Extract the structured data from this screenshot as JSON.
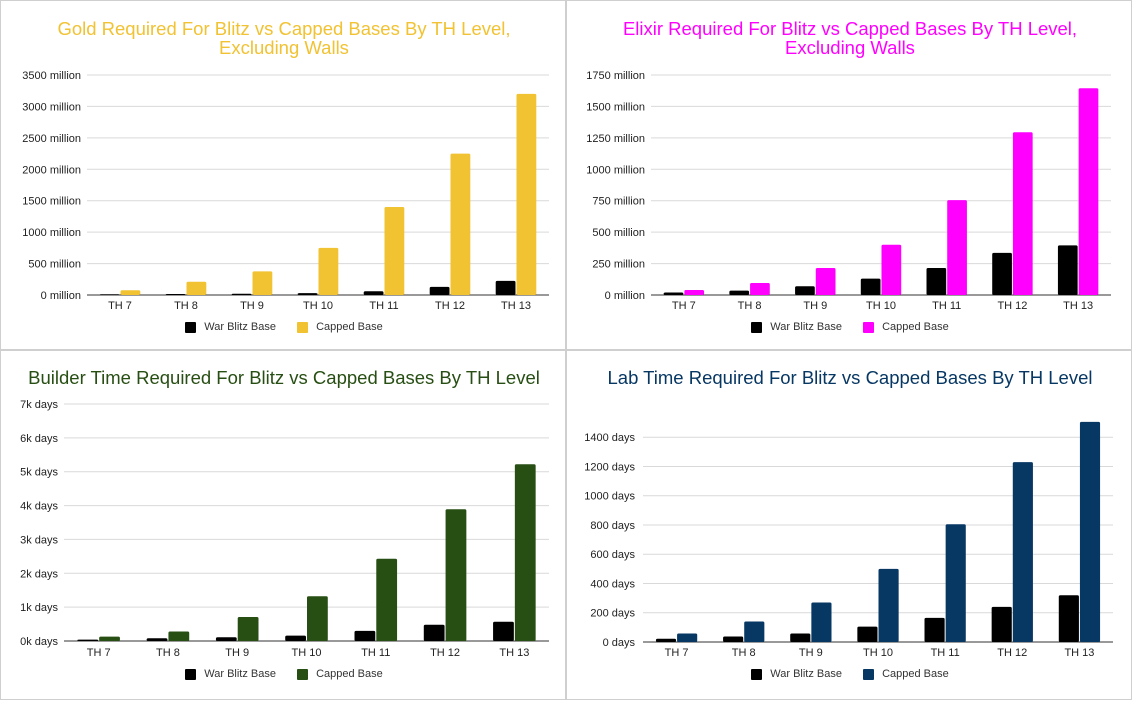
{
  "chart_data": [
    {
      "type": "bar",
      "title": "Gold Required For Blitz vs Capped Bases By TH Level, Excluding Walls",
      "title_lines": [
        "Gold Required For Blitz vs Capped Bases By TH Level,",
        "Excluding Walls"
      ],
      "title_color": "#f1c232",
      "categories": [
        "TH 7",
        "TH 8",
        "TH 9",
        "TH 10",
        "TH 11",
        "TH 12",
        "TH 13"
      ],
      "series": [
        {
          "name": "War Blitz Base",
          "color": "#000000",
          "values": [
            5,
            15,
            20,
            30,
            60,
            130,
            225
          ]
        },
        {
          "name": "Capped Base",
          "color": "#f1c232",
          "values": [
            75,
            210,
            375,
            750,
            1400,
            2250,
            3200
          ]
        }
      ],
      "yticks": [
        0,
        500,
        1000,
        1500,
        2000,
        2500,
        3000,
        3500
      ],
      "ytick_labels": [
        "0 million",
        "500 million",
        "1000 million",
        "1500 million",
        "2000 million",
        "2500 million",
        "3000 million",
        "3500 million"
      ],
      "ylim": [
        0,
        3500
      ],
      "xlabel": "",
      "ylabel": "",
      "legend": "bottom"
    },
    {
      "type": "bar",
      "title": "Elixir Required For Blitz vs Capped Bases By TH Level, Excluding Walls",
      "title_lines": [
        "Elixir Required For Blitz vs Capped Bases By TH Level,",
        "Excluding Walls"
      ],
      "title_color": "#ff00ff",
      "categories": [
        "TH 7",
        "TH 8",
        "TH 9",
        "TH 10",
        "TH 11",
        "TH 12",
        "TH 13"
      ],
      "series": [
        {
          "name": "War Blitz Base",
          "color": "#000000",
          "values": [
            20,
            35,
            70,
            130,
            215,
            335,
            395
          ]
        },
        {
          "name": "Capped Base",
          "color": "#ff00ff",
          "values": [
            40,
            95,
            215,
            400,
            755,
            1295,
            1645
          ]
        }
      ],
      "yticks": [
        0,
        250,
        500,
        750,
        1000,
        1250,
        1500,
        1750
      ],
      "ytick_labels": [
        "0 million",
        "250 million",
        "500 million",
        "750 million",
        "1000 million",
        "1250 million",
        "1500 million",
        "1750 million"
      ],
      "ylim": [
        0,
        1750
      ],
      "xlabel": "",
      "ylabel": "",
      "legend": "bottom"
    },
    {
      "type": "bar",
      "title": "Builder Time Required For Blitz vs Capped Bases By TH Level",
      "title_lines": [
        "Builder Time Required For Blitz vs Capped Bases By TH Level"
      ],
      "title_color": "#274e13",
      "categories": [
        "TH 7",
        "TH 8",
        "TH 9",
        "TH 10",
        "TH 11",
        "TH 12",
        "TH 13"
      ],
      "series": [
        {
          "name": "War Blitz Base",
          "color": "#000000",
          "values": [
            40,
            80,
            110,
            160,
            300,
            480,
            570
          ]
        },
        {
          "name": "Capped Base",
          "color": "#274e13",
          "values": [
            130,
            280,
            710,
            1320,
            2430,
            3890,
            5220
          ]
        }
      ],
      "yticks": [
        0,
        1000,
        2000,
        3000,
        4000,
        5000,
        6000,
        7000
      ],
      "ytick_labels": [
        "0k days",
        "1k days",
        "2k days",
        "3k days",
        "4k days",
        "5k days",
        "6k days",
        "7k days"
      ],
      "ylim": [
        0,
        7000
      ],
      "xlabel": "",
      "ylabel": "",
      "legend": "bottom"
    },
    {
      "type": "bar",
      "title": "Lab Time Required For Blitz vs Capped Bases By TH Level",
      "title_lines": [
        "Lab Time Required For Blitz vs Capped Bases By TH Level"
      ],
      "title_color": "#073763",
      "categories": [
        "TH 7",
        "TH 8",
        "TH 9",
        "TH 10",
        "TH 11",
        "TH 12",
        "TH 13"
      ],
      "series": [
        {
          "name": "War Blitz Base",
          "color": "#000000",
          "values": [
            22,
            38,
            58,
            105,
            165,
            240,
            320
          ]
        },
        {
          "name": "Capped Base",
          "color": "#073763",
          "values": [
            58,
            140,
            270,
            500,
            805,
            1230,
            1505
          ]
        }
      ],
      "yticks": [
        0,
        200,
        400,
        600,
        800,
        1000,
        1200,
        1400
      ],
      "ytick_labels": [
        "0 days",
        "200 days",
        "400 days",
        "600 days",
        "800 days",
        "1000 days",
        "1200 days",
        "1400 days"
      ],
      "ylim": [
        0,
        1511
      ],
      "xlabel": "",
      "ylabel": "",
      "legend": "bottom"
    }
  ]
}
